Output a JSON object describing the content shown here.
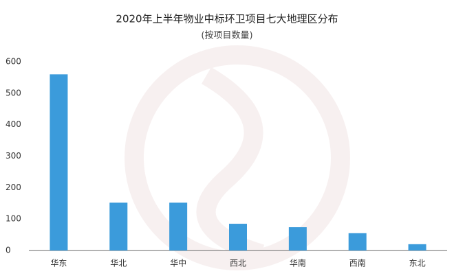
{
  "chart_data": {
    "type": "bar",
    "title": "2020年上半年物业中标环卫项目七大地理区分布",
    "subtitle": "(按项目数量)",
    "categories": [
      "华东",
      "华北",
      "华中",
      "西北",
      "华南",
      "西南",
      "东北"
    ],
    "values": [
      560,
      152,
      152,
      85,
      74,
      55,
      20
    ],
    "color": "#3b9bdb",
    "ylim": [
      0,
      600
    ],
    "yticks": [
      0,
      100,
      200,
      300,
      400,
      500,
      600
    ],
    "grid": false
  }
}
